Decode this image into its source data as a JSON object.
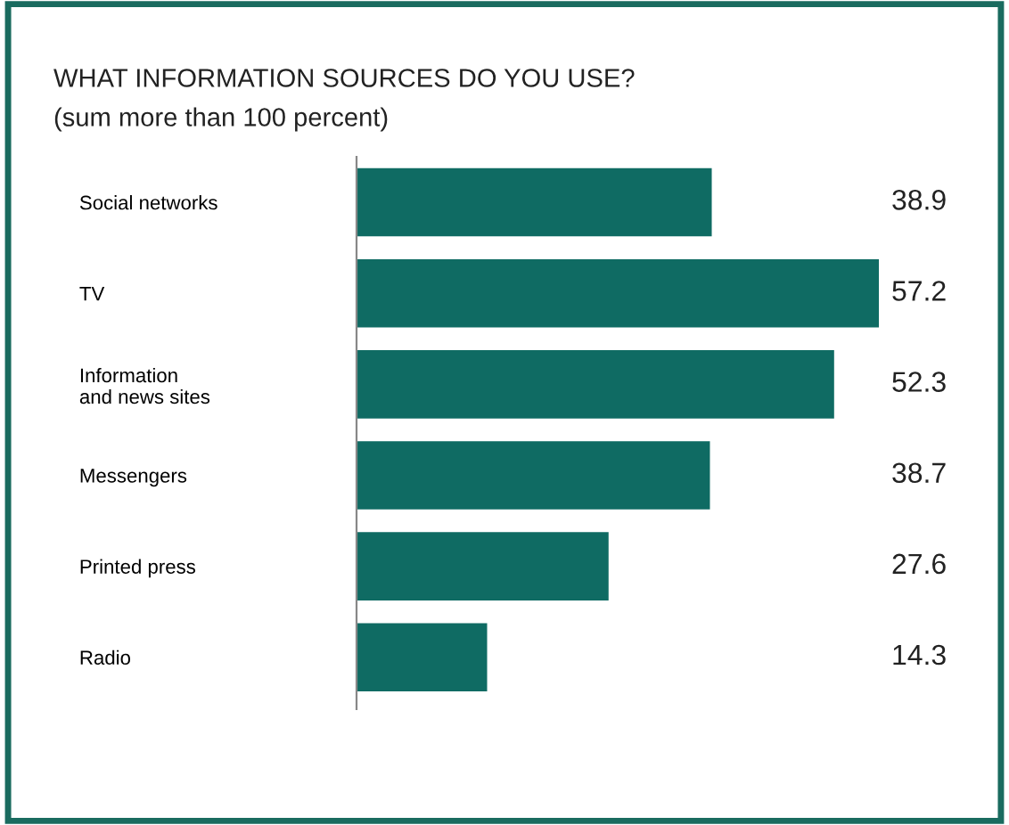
{
  "chart_data": {
    "type": "bar",
    "orientation": "horizontal",
    "title": "WHAT INFORMATION SOURCES DO YOU USE?",
    "subtitle": "(sum more than 100 percent)",
    "categories": [
      "Social networks",
      "TV",
      "Information\nand news sites",
      "Messengers",
      "Printed press",
      "Radio"
    ],
    "values": [
      38.9,
      57.2,
      52.3,
      38.7,
      27.6,
      14.3
    ],
    "color": "#0f6b63",
    "data_labels": true,
    "grid": false,
    "tick_labels": "y"
  }
}
